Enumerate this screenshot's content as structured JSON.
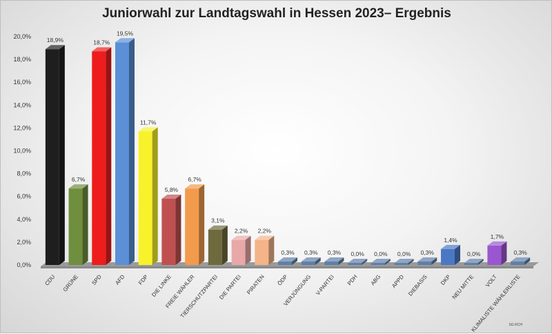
{
  "title": "Juniorwahl zur Landtagswahl in Hessen 2023– Ergebnis",
  "credit": "SG RCH",
  "chart_data": {
    "type": "bar",
    "title": "Juniorwahl zur Landtagswahl in Hessen 2023– Ergebnis",
    "xlabel": "",
    "ylabel": "",
    "ylim": [
      0,
      20
    ],
    "y_ticks": [
      "0,0%",
      "2,0%",
      "4,0%",
      "6,0%",
      "8,0%",
      "10,0%",
      "12,0%",
      "14,0%",
      "16,0%",
      "18,0%",
      "20,0%"
    ],
    "grid": false,
    "categories": [
      "CDU",
      "GRÜNE",
      "SPD",
      "AFD",
      "FDP",
      "DIE LINKE",
      "FREIE WÄHLER",
      "TIERSCHUTZPARTEI",
      "DIE PARTEI",
      "PIRATEN",
      "ÖDP",
      "VERJÜNGUNG",
      "V-PARTEI",
      "PDH",
      "ABG",
      "APPD",
      "DIEBASIS",
      "DKP",
      "NEU MITTE",
      "VOLT",
      "KLIMALISTE WÄHLERLISTE"
    ],
    "values": [
      18.9,
      6.7,
      18.7,
      19.5,
      11.7,
      5.8,
      6.7,
      3.1,
      2.2,
      2.2,
      0.3,
      0.3,
      0.3,
      0.0,
      0.0,
      0.0,
      0.3,
      1.4,
      0.0,
      1.7,
      0.3
    ],
    "data_labels": [
      "18,9%",
      "6,7%",
      "18,7%",
      "19,5%",
      "11,7%",
      "5,8%",
      "6,7%",
      "3,1%",
      "2,2%",
      "2,2%",
      "0,3%",
      "0,3%",
      "0,3%",
      "0,0%",
      "0,0%",
      "0,0%",
      "0,3%",
      "1,4%",
      "0,0%",
      "1,7%",
      "0,3%"
    ],
    "colors": [
      "#1e1e1e",
      "#6f8f3e",
      "#ee1c1c",
      "#5b8fd6",
      "#f7f22a",
      "#c05050",
      "#f29b4c",
      "#6f6a3e",
      "#e9a8a8",
      "#f4b488",
      "#5f7fa8",
      "#5f7fa8",
      "#5f7fa8",
      "#5f7fa8",
      "#5f7fa8",
      "#5f7fa8",
      "#5f7fa8",
      "#4a78c4",
      "#5f7fa8",
      "#9a56d0",
      "#5f7fa8"
    ]
  }
}
